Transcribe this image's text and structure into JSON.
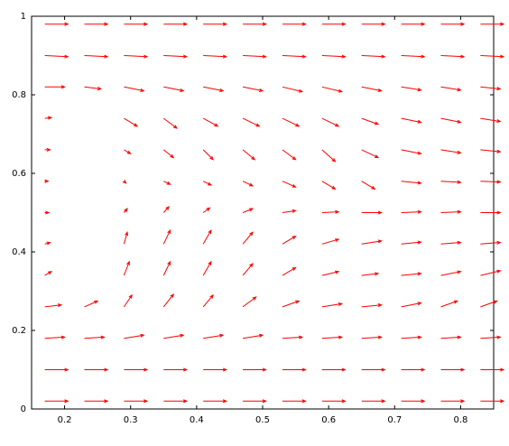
{
  "chart_data": {
    "type": "quiver",
    "color": "#ff0000",
    "xlim": [
      0.15,
      0.85
    ],
    "ylim": [
      0,
      1
    ],
    "xticks": [
      0.2,
      0.3,
      0.4,
      0.5,
      0.6,
      0.7,
      0.8
    ],
    "yticks": [
      0,
      0.2,
      0.4,
      0.6,
      0.8,
      1
    ],
    "vectors": [
      {
        "x": 0.17,
        "y": 0.02,
        "u": 0.035,
        "v": 0
      },
      {
        "x": 0.23,
        "y": 0.02,
        "u": 0.035,
        "v": 0
      },
      {
        "x": 0.29,
        "y": 0.02,
        "u": 0.035,
        "v": 0
      },
      {
        "x": 0.35,
        "y": 0.02,
        "u": 0.035,
        "v": 0
      },
      {
        "x": 0.41,
        "y": 0.02,
        "u": 0.035,
        "v": 0
      },
      {
        "x": 0.47,
        "y": 0.02,
        "u": 0.035,
        "v": 0
      },
      {
        "x": 0.53,
        "y": 0.02,
        "u": 0.035,
        "v": 0
      },
      {
        "x": 0.59,
        "y": 0.02,
        "u": 0.035,
        "v": 0
      },
      {
        "x": 0.65,
        "y": 0.02,
        "u": 0.035,
        "v": 0
      },
      {
        "x": 0.71,
        "y": 0.02,
        "u": 0.035,
        "v": 0
      },
      {
        "x": 0.77,
        "y": 0.02,
        "u": 0.035,
        "v": 0
      },
      {
        "x": 0.83,
        "y": 0.02,
        "u": 0.035,
        "v": 0
      },
      {
        "x": 0.17,
        "y": 0.1,
        "u": 0.035,
        "v": 0
      },
      {
        "x": 0.23,
        "y": 0.1,
        "u": 0.035,
        "v": 0
      },
      {
        "x": 0.29,
        "y": 0.1,
        "u": 0.035,
        "v": 0
      },
      {
        "x": 0.35,
        "y": 0.1,
        "u": 0.035,
        "v": 0
      },
      {
        "x": 0.41,
        "y": 0.1,
        "u": 0.035,
        "v": 0
      },
      {
        "x": 0.47,
        "y": 0.1,
        "u": 0.035,
        "v": 0
      },
      {
        "x": 0.53,
        "y": 0.1,
        "u": 0.035,
        "v": 0
      },
      {
        "x": 0.59,
        "y": 0.1,
        "u": 0.035,
        "v": 0
      },
      {
        "x": 0.65,
        "y": 0.1,
        "u": 0.035,
        "v": 0
      },
      {
        "x": 0.71,
        "y": 0.1,
        "u": 0.035,
        "v": 0
      },
      {
        "x": 0.77,
        "y": 0.1,
        "u": 0.035,
        "v": 0
      },
      {
        "x": 0.83,
        "y": 0.1,
        "u": 0.035,
        "v": 0
      },
      {
        "x": 0.17,
        "y": 0.18,
        "u": 0.03,
        "v": 0.003
      },
      {
        "x": 0.23,
        "y": 0.18,
        "u": 0.03,
        "v": 0.003
      },
      {
        "x": 0.29,
        "y": 0.18,
        "u": 0.03,
        "v": 0.008
      },
      {
        "x": 0.35,
        "y": 0.18,
        "u": 0.03,
        "v": 0.008
      },
      {
        "x": 0.41,
        "y": 0.18,
        "u": 0.03,
        "v": 0.008
      },
      {
        "x": 0.47,
        "y": 0.18,
        "u": 0.03,
        "v": 0.008
      },
      {
        "x": 0.53,
        "y": 0.18,
        "u": 0.03,
        "v": 0.003
      },
      {
        "x": 0.59,
        "y": 0.18,
        "u": 0.03,
        "v": 0.003
      },
      {
        "x": 0.65,
        "y": 0.18,
        "u": 0.03,
        "v": 0.003
      },
      {
        "x": 0.71,
        "y": 0.18,
        "u": 0.03,
        "v": 0.003
      },
      {
        "x": 0.77,
        "y": 0.18,
        "u": 0.03,
        "v": 0.003
      },
      {
        "x": 0.83,
        "y": 0.18,
        "u": 0.03,
        "v": 0.003
      },
      {
        "x": 0.17,
        "y": 0.26,
        "u": 0.025,
        "v": 0.005
      },
      {
        "x": 0.23,
        "y": 0.26,
        "u": 0.02,
        "v": 0.015
      },
      {
        "x": 0.29,
        "y": 0.26,
        "u": 0.012,
        "v": 0.03
      },
      {
        "x": 0.35,
        "y": 0.26,
        "u": 0.015,
        "v": 0.032
      },
      {
        "x": 0.41,
        "y": 0.26,
        "u": 0.015,
        "v": 0.03
      },
      {
        "x": 0.47,
        "y": 0.26,
        "u": 0.02,
        "v": 0.025
      },
      {
        "x": 0.53,
        "y": 0.26,
        "u": 0.025,
        "v": 0.015
      },
      {
        "x": 0.59,
        "y": 0.26,
        "u": 0.03,
        "v": 0.008
      },
      {
        "x": 0.65,
        "y": 0.26,
        "u": 0.03,
        "v": 0.005
      },
      {
        "x": 0.71,
        "y": 0.26,
        "u": 0.03,
        "v": 0.01
      },
      {
        "x": 0.77,
        "y": 0.26,
        "u": 0.025,
        "v": 0.015
      },
      {
        "x": 0.83,
        "y": 0.26,
        "u": 0.025,
        "v": 0.015
      },
      {
        "x": 0.17,
        "y": 0.34,
        "u": 0.01,
        "v": 0.01
      },
      {
        "x": 0.29,
        "y": 0.34,
        "u": 0.008,
        "v": 0.035
      },
      {
        "x": 0.35,
        "y": 0.34,
        "u": 0.01,
        "v": 0.035
      },
      {
        "x": 0.41,
        "y": 0.34,
        "u": 0.012,
        "v": 0.035
      },
      {
        "x": 0.47,
        "y": 0.34,
        "u": 0.015,
        "v": 0.03
      },
      {
        "x": 0.53,
        "y": 0.34,
        "u": 0.02,
        "v": 0.02
      },
      {
        "x": 0.59,
        "y": 0.34,
        "u": 0.025,
        "v": 0.01
      },
      {
        "x": 0.65,
        "y": 0.34,
        "u": 0.025,
        "v": 0.005
      },
      {
        "x": 0.71,
        "y": 0.34,
        "u": 0.03,
        "v": 0.005
      },
      {
        "x": 0.77,
        "y": 0.34,
        "u": 0.03,
        "v": 0.01
      },
      {
        "x": 0.83,
        "y": 0.34,
        "u": 0.03,
        "v": 0.012
      },
      {
        "x": 0.17,
        "y": 0.42,
        "u": 0.008,
        "v": 0.004
      },
      {
        "x": 0.29,
        "y": 0.42,
        "u": 0.005,
        "v": 0.03
      },
      {
        "x": 0.35,
        "y": 0.42,
        "u": 0.01,
        "v": 0.035
      },
      {
        "x": 0.41,
        "y": 0.42,
        "u": 0.012,
        "v": 0.035
      },
      {
        "x": 0.47,
        "y": 0.42,
        "u": 0.015,
        "v": 0.03
      },
      {
        "x": 0.53,
        "y": 0.42,
        "u": 0.02,
        "v": 0.02
      },
      {
        "x": 0.59,
        "y": 0.42,
        "u": 0.025,
        "v": 0.012
      },
      {
        "x": 0.65,
        "y": 0.42,
        "u": 0.03,
        "v": 0.008
      },
      {
        "x": 0.71,
        "y": 0.42,
        "u": 0.03,
        "v": 0.005
      },
      {
        "x": 0.77,
        "y": 0.42,
        "u": 0.03,
        "v": 0.004
      },
      {
        "x": 0.83,
        "y": 0.42,
        "u": 0.03,
        "v": 0.004
      },
      {
        "x": 0.17,
        "y": 0.5,
        "u": 0.006,
        "v": 0
      },
      {
        "x": 0.29,
        "y": 0.5,
        "u": 0.005,
        "v": 0.01
      },
      {
        "x": 0.35,
        "y": 0.5,
        "u": 0.008,
        "v": 0.015
      },
      {
        "x": 0.41,
        "y": 0.5,
        "u": 0.01,
        "v": 0.012
      },
      {
        "x": 0.47,
        "y": 0.5,
        "u": 0.015,
        "v": 0.01
      },
      {
        "x": 0.53,
        "y": 0.5,
        "u": 0.02,
        "v": 0.005
      },
      {
        "x": 0.59,
        "y": 0.5,
        "u": 0.025,
        "v": 0.002
      },
      {
        "x": 0.65,
        "y": 0.5,
        "u": 0.03,
        "v": 0
      },
      {
        "x": 0.71,
        "y": 0.5,
        "u": 0.03,
        "v": 0.002
      },
      {
        "x": 0.77,
        "y": 0.5,
        "u": 0.03,
        "v": 0.002
      },
      {
        "x": 0.83,
        "y": 0.5,
        "u": 0.03,
        "v": 0
      },
      {
        "x": 0.17,
        "y": 0.58,
        "u": 0.005,
        "v": 0
      },
      {
        "x": 0.29,
        "y": 0.58,
        "u": 0.003,
        "v": -0.005
      },
      {
        "x": 0.35,
        "y": 0.58,
        "u": 0.01,
        "v": -0.008
      },
      {
        "x": 0.41,
        "y": 0.58,
        "u": 0.012,
        "v": -0.01
      },
      {
        "x": 0.47,
        "y": 0.58,
        "u": 0.015,
        "v": -0.012
      },
      {
        "x": 0.53,
        "y": 0.58,
        "u": 0.02,
        "v": -0.015
      },
      {
        "x": 0.59,
        "y": 0.58,
        "u": 0.02,
        "v": -0.02
      },
      {
        "x": 0.65,
        "y": 0.58,
        "u": 0.02,
        "v": -0.02
      },
      {
        "x": 0.71,
        "y": 0.58,
        "u": 0.03,
        "v": -0.005
      },
      {
        "x": 0.77,
        "y": 0.58,
        "u": 0.03,
        "v": -0.003
      },
      {
        "x": 0.83,
        "y": 0.58,
        "u": 0.03,
        "v": -0.002
      },
      {
        "x": 0.17,
        "y": 0.66,
        "u": 0.008,
        "v": 0
      },
      {
        "x": 0.29,
        "y": 0.66,
        "u": 0.01,
        "v": -0.01
      },
      {
        "x": 0.35,
        "y": 0.66,
        "u": 0.015,
        "v": -0.02
      },
      {
        "x": 0.41,
        "y": 0.66,
        "u": 0.015,
        "v": -0.025
      },
      {
        "x": 0.47,
        "y": 0.66,
        "u": 0.018,
        "v": -0.025
      },
      {
        "x": 0.53,
        "y": 0.66,
        "u": 0.02,
        "v": -0.025
      },
      {
        "x": 0.59,
        "y": 0.66,
        "u": 0.02,
        "v": -0.03
      },
      {
        "x": 0.65,
        "y": 0.66,
        "u": 0.025,
        "v": -0.02
      },
      {
        "x": 0.71,
        "y": 0.66,
        "u": 0.03,
        "v": -0.01
      },
      {
        "x": 0.77,
        "y": 0.66,
        "u": 0.03,
        "v": -0.008
      },
      {
        "x": 0.83,
        "y": 0.66,
        "u": 0.03,
        "v": -0.005
      },
      {
        "x": 0.17,
        "y": 0.74,
        "u": 0.01,
        "v": 0.002
      },
      {
        "x": 0.29,
        "y": 0.74,
        "u": 0.02,
        "v": -0.02
      },
      {
        "x": 0.35,
        "y": 0.74,
        "u": 0.02,
        "v": -0.025
      },
      {
        "x": 0.41,
        "y": 0.74,
        "u": 0.022,
        "v": -0.02
      },
      {
        "x": 0.47,
        "y": 0.74,
        "u": 0.025,
        "v": -0.02
      },
      {
        "x": 0.53,
        "y": 0.74,
        "u": 0.025,
        "v": -0.02
      },
      {
        "x": 0.59,
        "y": 0.74,
        "u": 0.025,
        "v": -0.02
      },
      {
        "x": 0.65,
        "y": 0.74,
        "u": 0.025,
        "v": -0.015
      },
      {
        "x": 0.71,
        "y": 0.74,
        "u": 0.03,
        "v": -0.01
      },
      {
        "x": 0.77,
        "y": 0.74,
        "u": 0.03,
        "v": -0.01
      },
      {
        "x": 0.83,
        "y": 0.74,
        "u": 0.03,
        "v": -0.008
      },
      {
        "x": 0.17,
        "y": 0.82,
        "u": 0.03,
        "v": 0
      },
      {
        "x": 0.23,
        "y": 0.82,
        "u": 0.025,
        "v": -0.005
      },
      {
        "x": 0.29,
        "y": 0.82,
        "u": 0.03,
        "v": -0.01
      },
      {
        "x": 0.35,
        "y": 0.82,
        "u": 0.03,
        "v": -0.01
      },
      {
        "x": 0.41,
        "y": 0.82,
        "u": 0.03,
        "v": -0.01
      },
      {
        "x": 0.47,
        "y": 0.82,
        "u": 0.03,
        "v": -0.01
      },
      {
        "x": 0.53,
        "y": 0.82,
        "u": 0.03,
        "v": -0.012
      },
      {
        "x": 0.59,
        "y": 0.82,
        "u": 0.03,
        "v": -0.012
      },
      {
        "x": 0.65,
        "y": 0.82,
        "u": 0.03,
        "v": -0.01
      },
      {
        "x": 0.71,
        "y": 0.82,
        "u": 0.03,
        "v": -0.008
      },
      {
        "x": 0.77,
        "y": 0.82,
        "u": 0.03,
        "v": -0.008
      },
      {
        "x": 0.83,
        "y": 0.82,
        "u": 0.03,
        "v": -0.005
      },
      {
        "x": 0.17,
        "y": 0.9,
        "u": 0.035,
        "v": -0.003
      },
      {
        "x": 0.23,
        "y": 0.9,
        "u": 0.035,
        "v": -0.003
      },
      {
        "x": 0.29,
        "y": 0.9,
        "u": 0.035,
        "v": -0.003
      },
      {
        "x": 0.35,
        "y": 0.9,
        "u": 0.035,
        "v": -0.003
      },
      {
        "x": 0.41,
        "y": 0.9,
        "u": 0.035,
        "v": -0.003
      },
      {
        "x": 0.47,
        "y": 0.9,
        "u": 0.035,
        "v": -0.003
      },
      {
        "x": 0.53,
        "y": 0.9,
        "u": 0.035,
        "v": -0.003
      },
      {
        "x": 0.59,
        "y": 0.9,
        "u": 0.035,
        "v": -0.003
      },
      {
        "x": 0.65,
        "y": 0.9,
        "u": 0.035,
        "v": -0.003
      },
      {
        "x": 0.71,
        "y": 0.9,
        "u": 0.035,
        "v": -0.003
      },
      {
        "x": 0.77,
        "y": 0.9,
        "u": 0.035,
        "v": -0.003
      },
      {
        "x": 0.83,
        "y": 0.9,
        "u": 0.035,
        "v": -0.003
      },
      {
        "x": 0.17,
        "y": 0.98,
        "u": 0.035,
        "v": 0
      },
      {
        "x": 0.23,
        "y": 0.98,
        "u": 0.035,
        "v": 0
      },
      {
        "x": 0.29,
        "y": 0.98,
        "u": 0.035,
        "v": 0
      },
      {
        "x": 0.35,
        "y": 0.98,
        "u": 0.035,
        "v": 0
      },
      {
        "x": 0.41,
        "y": 0.98,
        "u": 0.035,
        "v": 0
      },
      {
        "x": 0.47,
        "y": 0.98,
        "u": 0.035,
        "v": 0
      },
      {
        "x": 0.53,
        "y": 0.98,
        "u": 0.035,
        "v": 0
      },
      {
        "x": 0.59,
        "y": 0.98,
        "u": 0.035,
        "v": 0
      },
      {
        "x": 0.65,
        "y": 0.98,
        "u": 0.035,
        "v": 0
      },
      {
        "x": 0.71,
        "y": 0.98,
        "u": 0.035,
        "v": 0
      },
      {
        "x": 0.77,
        "y": 0.98,
        "u": 0.035,
        "v": 0
      },
      {
        "x": 0.83,
        "y": 0.98,
        "u": 0.035,
        "v": 0
      }
    ]
  }
}
